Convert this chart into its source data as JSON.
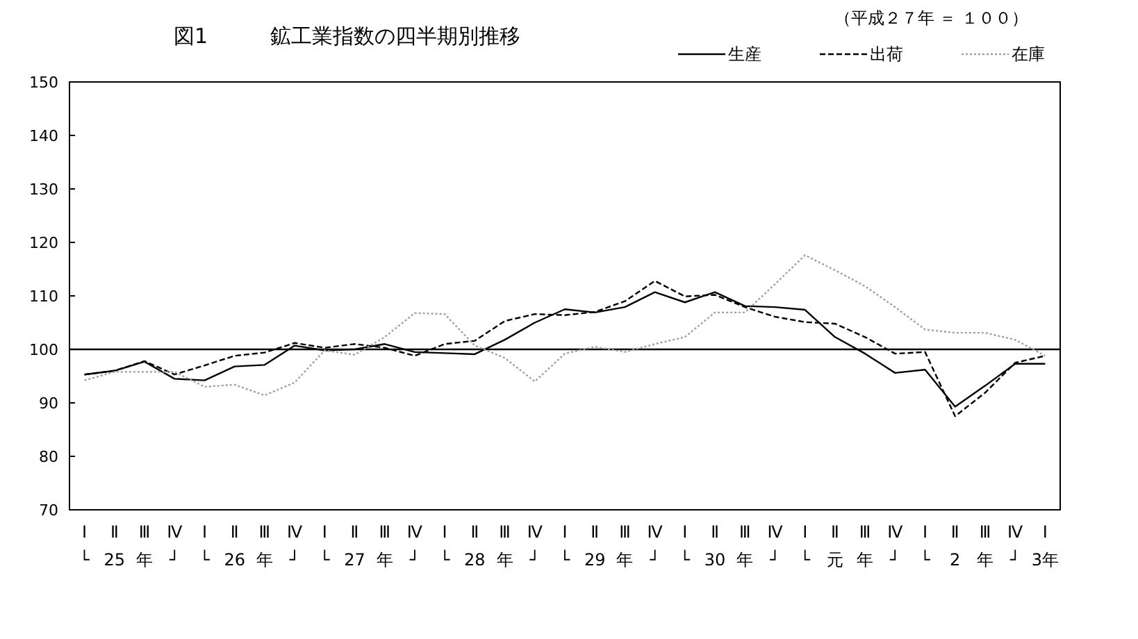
{
  "chart_data": {
    "type": "line",
    "title": "図1　　　鉱工業指数の四半期別推移",
    "annotations": [
      "（平成２７年 ＝ １００）"
    ],
    "categories": [
      "Ⅰ\n└",
      "Ⅱ\n25",
      "Ⅲ\n年",
      "Ⅳ\n┘",
      "Ⅰ\n└",
      "Ⅱ\n26",
      "Ⅲ\n年",
      "Ⅳ\n┘",
      "Ⅰ\n└",
      "Ⅱ\n27",
      "Ⅲ\n年",
      "Ⅳ\n┘",
      "Ⅰ\n└",
      "Ⅱ\n28",
      "Ⅲ\n年",
      "Ⅳ\n┘",
      "Ⅰ\n└",
      "Ⅱ\n29",
      "Ⅲ\n年",
      "Ⅳ\n┘",
      "Ⅰ\n└",
      "Ⅱ\n30",
      "Ⅲ\n年",
      "Ⅳ\n┘",
      "Ⅰ\n└",
      "Ⅱ\n元",
      "Ⅲ\n年",
      "Ⅳ\n┘",
      "Ⅰ\n└",
      "Ⅱ\n2",
      "Ⅲ\n年",
      "Ⅳ\n┘",
      "Ⅰ\n3年"
    ],
    "series": [
      {
        "name": "生産",
        "color": "#000000",
        "line_style": "solid",
        "values": [
          95.3,
          96.0,
          97.7,
          94.5,
          94.2,
          96.8,
          97.1,
          100.7,
          99.8,
          100.0,
          101.0,
          99.5,
          99.3,
          99.1,
          101.8,
          105.0,
          107.5,
          106.9,
          107.9,
          110.7,
          108.8,
          110.7,
          108.1,
          107.9,
          107.4,
          102.3,
          99.2,
          95.6,
          96.2,
          89.3,
          93.2,
          97.3,
          97.3
        ]
      },
      {
        "name": "出荷",
        "color": "#000000",
        "line_style": "dashed",
        "values": [
          95.3,
          96.0,
          97.8,
          95.3,
          97.0,
          98.8,
          99.4,
          101.2,
          100.3,
          101.0,
          100.3,
          98.8,
          101.0,
          101.6,
          105.3,
          106.6,
          106.4,
          107.0,
          109.0,
          112.8,
          109.9,
          110.2,
          107.9,
          106.1,
          105.1,
          104.8,
          102.3,
          99.2,
          99.5,
          87.5,
          91.9,
          97.5,
          98.8
        ]
      },
      {
        "name": "在庫",
        "color": "#a0a0a0",
        "line_style": "dotted",
        "values": [
          94.2,
          95.8,
          95.8,
          95.8,
          93.0,
          93.4,
          91.4,
          93.8,
          99.8,
          99.0,
          102.3,
          106.8,
          106.6,
          100.7,
          98.4,
          94.0,
          99.2,
          100.5,
          99.5,
          101.0,
          102.3,
          106.9,
          106.9,
          112.2,
          117.6,
          114.8,
          111.8,
          107.9,
          103.7,
          103.1,
          103.1,
          101.8,
          98.8
        ]
      }
    ],
    "ylim": [
      70,
      150
    ],
    "yticks": [
      70,
      80,
      90,
      100,
      110,
      120,
      130,
      140,
      150
    ],
    "ref_lines": [
      {
        "axis": "y",
        "value": 100,
        "color": "#000000"
      }
    ],
    "legend": "top right"
  }
}
